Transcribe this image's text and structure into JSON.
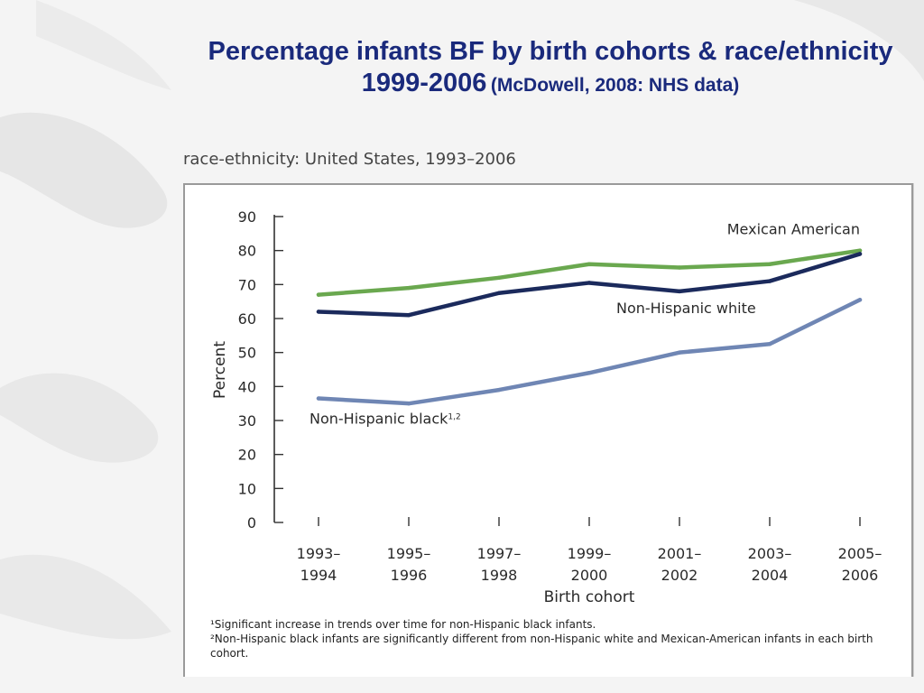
{
  "slide": {
    "title_main": "Percentage infants BF by birth cohorts & race/ethnicity 1999-2006",
    "title_cite": "(McDowell, 2008: NHS data)"
  },
  "figure": {
    "caption_fragment": "race-ethnicity: United States, 1993–2006",
    "footnotes": [
      "¹Significant increase in trends over time for non-Hispanic black infants.",
      "²Non-Hispanic black infants are significantly different from non-Hispanic white and Mexican-American infants in each birth cohort."
    ]
  },
  "chart_data": {
    "type": "line",
    "xlabel": "Birth cohort",
    "ylabel": "Percent",
    "ylim": [
      0,
      90
    ],
    "yticks": [
      0,
      10,
      20,
      30,
      40,
      50,
      60,
      70,
      80,
      90
    ],
    "grid": false,
    "categories": [
      [
        "1993–",
        "1994"
      ],
      [
        "1995–",
        "1996"
      ],
      [
        "1997–",
        "1998"
      ],
      [
        "1999–",
        "2000"
      ],
      [
        "2001–",
        "2002"
      ],
      [
        "2003–",
        "2004"
      ],
      [
        "2005–",
        "2006"
      ]
    ],
    "series": [
      {
        "name": "Mexican American",
        "color": "#6aa84f",
        "values": [
          67,
          69,
          72,
          76,
          75,
          76,
          80
        ],
        "label_anchor_index": 6
      },
      {
        "name": "Non-Hispanic  white",
        "color": "#1b2a5c",
        "values": [
          62,
          61,
          67.5,
          70.5,
          68,
          71,
          79
        ],
        "label_anchor_index": 4
      },
      {
        "name": "Non-Hispanic black",
        "name_superscript": "1,2",
        "color": "#6f86b4",
        "values": [
          36.5,
          35,
          39,
          44,
          50,
          52.5,
          65.5
        ],
        "label_anchor_index": 0
      }
    ]
  }
}
